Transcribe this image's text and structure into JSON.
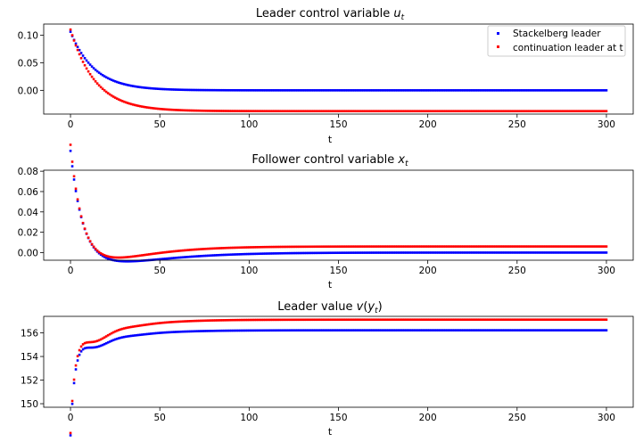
{
  "chart_data": [
    {
      "type": "scatter",
      "title": "Leader control variable",
      "title_symbol": "u",
      "title_subscript": "t",
      "xlabel": "t",
      "ylabel": "",
      "xlim": [
        -15,
        315
      ],
      "ylim": [
        -0.043,
        0.12
      ],
      "xticks": [
        0,
        50,
        100,
        150,
        200,
        250,
        300
      ],
      "yticks": [
        0.1,
        0.05,
        0.0
      ],
      "ytick_labels": [
        "0.10",
        "0.05",
        "0.00"
      ],
      "legend_position": "top-right",
      "legend": [
        "Stackelberg leader",
        "continuation leader at t"
      ],
      "series": [
        {
          "name": "Stackelberg leader",
          "color": "#0000ff",
          "model": {
            "type": "decay",
            "a": 0.0,
            "b": 0.106,
            "k": 0.075
          }
        },
        {
          "name": "continuation leader at t",
          "color": "#ff0000",
          "model": {
            "type": "decay",
            "a": -0.0377,
            "b": 0.1477,
            "k": 0.072
          }
        }
      ]
    },
    {
      "type": "scatter",
      "title": "Follower control variable",
      "title_symbol": "x",
      "title_subscript": "t",
      "xlabel": "t",
      "ylabel": "",
      "xlim": [
        -15,
        315
      ],
      "ylim": [
        -0.0075,
        0.081
      ],
      "xticks": [
        0,
        50,
        100,
        150,
        200,
        250,
        300
      ],
      "yticks": [
        0.08,
        0.06,
        0.04,
        0.02,
        0.0
      ],
      "ytick_labels": [
        "0.08",
        "0.06",
        "0.04",
        "0.02",
        "0.00"
      ],
      "series": [
        {
          "name": "Stackelberg leader",
          "color": "#0000ff",
          "model": {
            "type": "follower",
            "a": 0.0,
            "b": 0.1,
            "k": 0.15,
            "c": -0.005,
            "k2": 0.045
          }
        },
        {
          "name": "continuation leader at t",
          "color": "#ff0000",
          "model": {
            "type": "follower",
            "a": 0.006,
            "b": 0.1,
            "k": 0.16,
            "c": -0.008,
            "k2": 0.055
          }
        }
      ]
    },
    {
      "type": "scatter",
      "title": "Leader value",
      "title_symbol": "v",
      "title_paren": "y",
      "title_subscript": "t",
      "xlabel": "t",
      "ylabel": "",
      "xlim": [
        -15,
        315
      ],
      "ylim": [
        149.7,
        157.4
      ],
      "xticks": [
        0,
        50,
        100,
        150,
        200,
        250,
        300
      ],
      "yticks": [
        156,
        154,
        152,
        150
      ],
      "ytick_labels": [
        "156",
        "154",
        "152",
        "150"
      ],
      "series": [
        {
          "name": "Stackelberg leader",
          "color": "#0000ff",
          "model": {
            "type": "value",
            "a": 156.22,
            "b": -6.2,
            "k": 0.45,
            "c": -2.7,
            "k2": 0.05,
            "d": 1.3,
            "k3": 0.25
          }
        },
        {
          "name": "continuation leader at t",
          "color": "#ff0000",
          "model": {
            "type": "value",
            "a": 157.12,
            "b": -6.1,
            "k": 0.45,
            "c": -3.5,
            "k2": 0.05,
            "d": 1.5,
            "k3": 0.25
          }
        }
      ]
    }
  ]
}
